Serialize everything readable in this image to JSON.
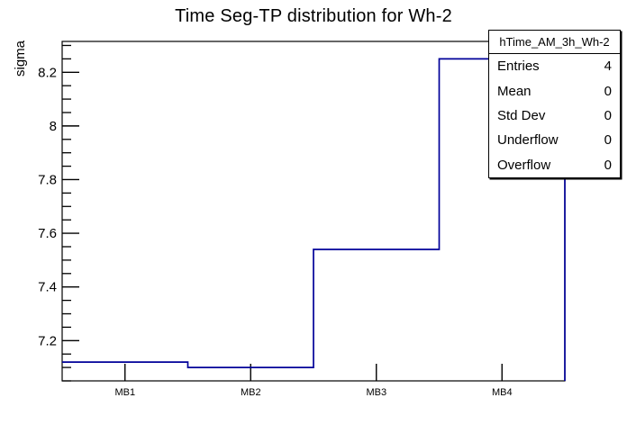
{
  "title": "Time Seg-TP distribution for Wh-2",
  "y_axis_title": "sigma",
  "stats_box": {
    "header": "hTime_AM_3h_Wh-2",
    "rows": [
      {
        "label": "Entries",
        "value": "4"
      },
      {
        "label": "Mean",
        "value": "0"
      },
      {
        "label": "Std Dev",
        "value": "0"
      },
      {
        "label": "Underflow",
        "value": "0"
      },
      {
        "label": "Overflow",
        "value": "0"
      }
    ]
  },
  "colors": {
    "hist_line": "#000099",
    "axis": "#000000",
    "background": "#ffffff"
  },
  "chart_data": {
    "type": "bar",
    "render_style": "step-outline-histogram",
    "title": "Time Seg-TP distribution for Wh-2",
    "xlabel": "",
    "ylabel": "sigma",
    "categories": [
      "MB1",
      "MB2",
      "MB3",
      "MB4"
    ],
    "values": [
      7.12,
      7.1,
      7.54,
      8.25
    ],
    "ylim": [
      7.05,
      8.315
    ],
    "y_major_ticks": [
      {
        "v": 7.2,
        "label": "7.2"
      },
      {
        "v": 7.4,
        "label": "7.4"
      },
      {
        "v": 7.6,
        "label": "7.6"
      },
      {
        "v": 7.8,
        "label": "7.8"
      },
      {
        "v": 8.0,
        "label": "8"
      },
      {
        "v": 8.2,
        "label": "8.2"
      }
    ],
    "y_major_step": 0.2,
    "y_minor_step": 0.05,
    "grid": false,
    "legend": false
  }
}
